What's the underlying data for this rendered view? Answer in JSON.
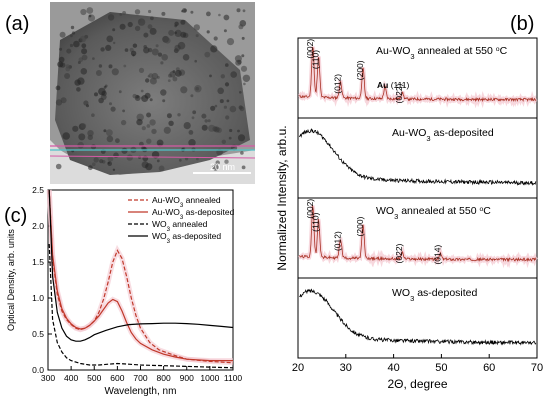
{
  "panel_labels": {
    "a": "(a)",
    "b": "(b)",
    "c": "(c)"
  },
  "tem": {
    "scale_bar_label": "20 nm"
  },
  "chart_data": [
    {
      "id": "c",
      "type": "line",
      "xlabel": "Wavelength, nm",
      "ylabel": "Optical Density, arb. units",
      "xlim": [
        300,
        1100
      ],
      "ylim": [
        0,
        2.5
      ],
      "xticks": [
        300,
        400,
        500,
        600,
        700,
        800,
        900,
        1000,
        1100
      ],
      "yticks": [
        0.0,
        0.5,
        1.0,
        1.5,
        2.0,
        2.5
      ],
      "legend_position": "top-right",
      "series": [
        {
          "name": "Au-WO3 annealed",
          "color": "#c0392b",
          "dash": "dashed",
          "x": [
            305,
            320,
            340,
            360,
            380,
            400,
            420,
            440,
            460,
            480,
            500,
            520,
            540,
            560,
            580,
            600,
            620,
            640,
            660,
            680,
            700,
            740,
            780,
            850,
            900,
            1000,
            1100
          ],
          "y": [
            2.5,
            1.55,
            1.05,
            0.82,
            0.7,
            0.63,
            0.58,
            0.56,
            0.58,
            0.62,
            0.68,
            0.8,
            0.98,
            1.22,
            1.5,
            1.66,
            1.55,
            1.3,
            1.0,
            0.76,
            0.58,
            0.38,
            0.28,
            0.2,
            0.15,
            0.12,
            0.1
          ]
        },
        {
          "name": "Au-WO3 as-deposited",
          "color": "#c0392b",
          "dash": "solid",
          "x": [
            305,
            320,
            340,
            360,
            380,
            400,
            420,
            440,
            460,
            480,
            500,
            520,
            540,
            560,
            580,
            600,
            620,
            640,
            660,
            680,
            700,
            750,
            800,
            850,
            900,
            1000,
            1100
          ],
          "y": [
            2.5,
            1.6,
            1.1,
            0.85,
            0.72,
            0.64,
            0.59,
            0.57,
            0.58,
            0.62,
            0.68,
            0.75,
            0.84,
            0.93,
            0.98,
            0.95,
            0.82,
            0.66,
            0.52,
            0.43,
            0.37,
            0.28,
            0.22,
            0.18,
            0.15,
            0.13,
            0.13
          ]
        },
        {
          "name": "WO3 annealed",
          "color": "#000000",
          "dash": "dashed",
          "x": [
            305,
            320,
            340,
            360,
            380,
            400,
            440,
            480,
            520,
            560,
            600,
            650,
            700,
            800,
            900,
            1000,
            1100
          ],
          "y": [
            1.75,
            0.7,
            0.38,
            0.25,
            0.17,
            0.13,
            0.09,
            0.07,
            0.07,
            0.08,
            0.09,
            0.08,
            0.07,
            0.06,
            0.05,
            0.04,
            0.03
          ]
        },
        {
          "name": "WO3 as-deposited",
          "color": "#000000",
          "dash": "solid",
          "x": [
            305,
            320,
            340,
            360,
            380,
            400,
            420,
            440,
            460,
            480,
            500,
            550,
            600,
            650,
            700,
            750,
            800,
            850,
            900,
            950,
            1000,
            1050,
            1100
          ],
          "y": [
            2.5,
            1.3,
            0.8,
            0.58,
            0.47,
            0.42,
            0.4,
            0.4,
            0.42,
            0.45,
            0.49,
            0.55,
            0.6,
            0.63,
            0.64,
            0.645,
            0.65,
            0.65,
            0.645,
            0.635,
            0.62,
            0.605,
            0.59
          ]
        }
      ]
    },
    {
      "id": "b",
      "type": "line",
      "xlabel": "2Θ, degree",
      "ylabel": "Normalized Intensity, arb.u.",
      "xlim": [
        20,
        70
      ],
      "xticks": [
        20,
        30,
        40,
        50,
        60,
        70
      ],
      "stacked_panels": [
        {
          "label": "Au-WO3 annealed at 550 °C",
          "color": "#a93226",
          "kind": "crystalline",
          "peaks": [
            {
              "x": 23.1,
              "h": 0.95,
              "label": "(002)"
            },
            {
              "x": 24.3,
              "h": 0.75,
              "label": "(110)"
            },
            {
              "x": 28.9,
              "h": 0.3,
              "label": "(012)"
            },
            {
              "x": 33.6,
              "h": 0.55,
              "label": "(200)"
            },
            {
              "x": 38.2,
              "h": 0.22,
              "label": "Au (111)"
            },
            {
              "x": 41.8,
              "h": 0.12,
              "label": "(022)"
            }
          ]
        },
        {
          "label": "Au-WO3 as-deposited",
          "color": "#000000",
          "kind": "amorphous"
        },
        {
          "label": "WO3 annealed at 550 °C",
          "color": "#a93226",
          "kind": "crystalline",
          "peaks": [
            {
              "x": 23.1,
              "h": 0.95,
              "label": "(002)"
            },
            {
              "x": 24.3,
              "h": 0.7,
              "label": "(110)"
            },
            {
              "x": 28.9,
              "h": 0.35,
              "label": "(012)"
            },
            {
              "x": 33.6,
              "h": 0.62,
              "label": "(200)"
            },
            {
              "x": 41.8,
              "h": 0.12,
              "label": "(022)"
            },
            {
              "x": 49.8,
              "h": 0.1,
              "label": "(014)"
            }
          ]
        },
        {
          "label": "WO3 as-deposited",
          "color": "#000000",
          "kind": "amorphous"
        }
      ]
    }
  ]
}
